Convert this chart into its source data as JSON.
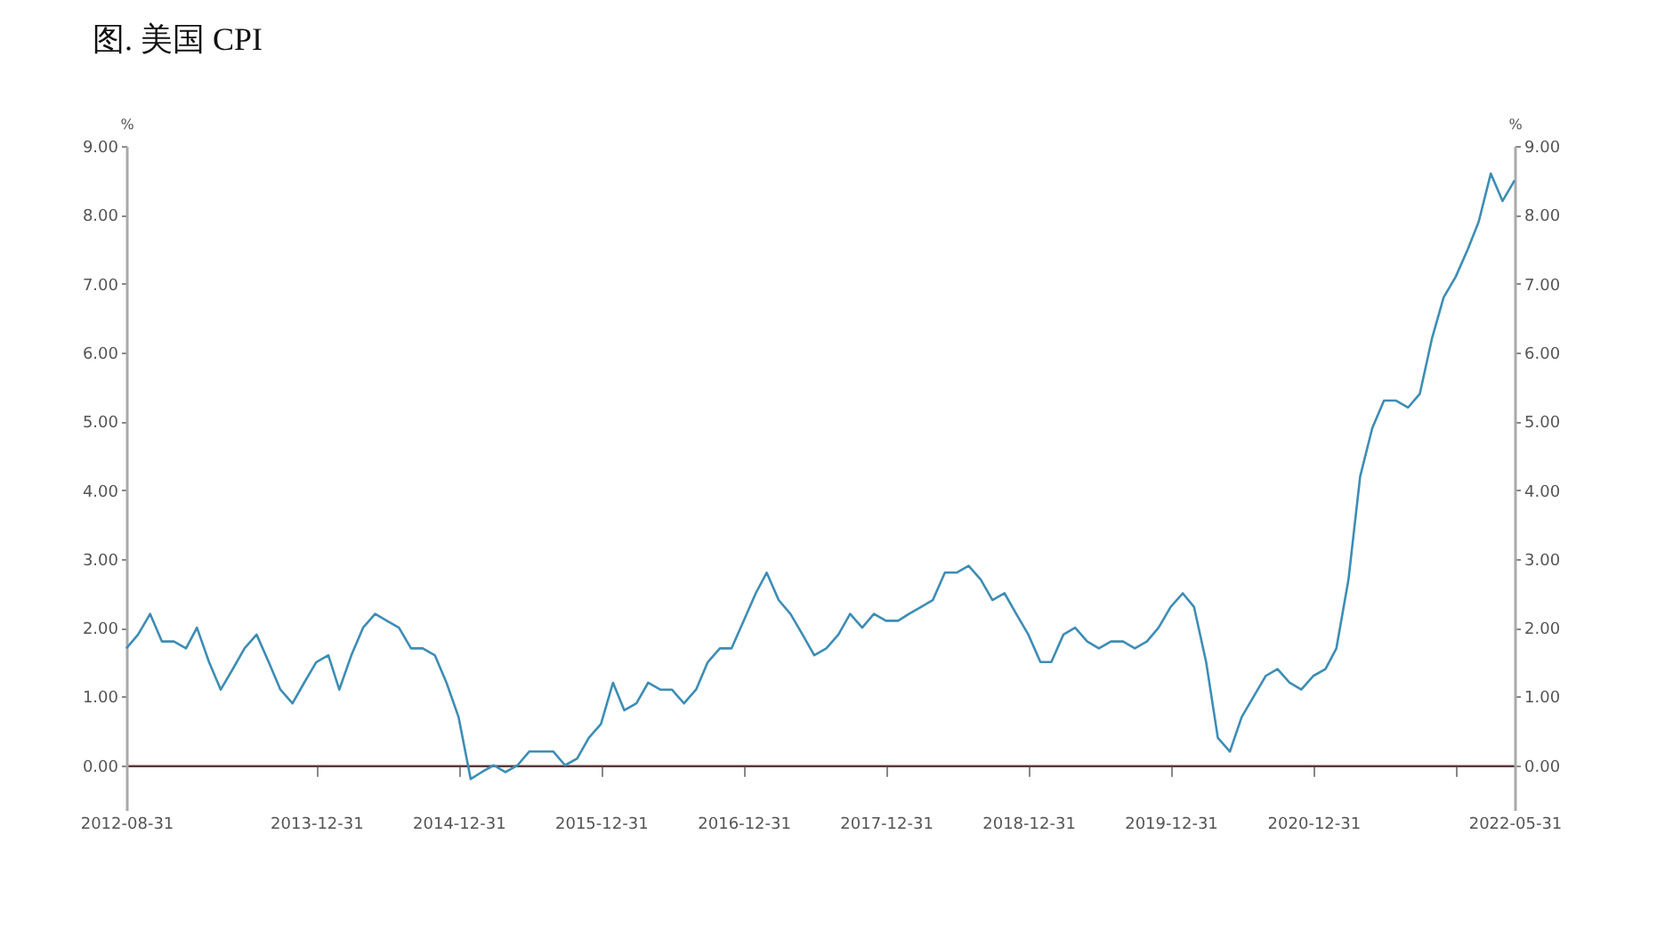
{
  "chart_data": {
    "type": "line",
    "title": "图. 美国 CPI",
    "ylabel": "%",
    "y2label": "%",
    "x": [
      "2012-08-31",
      "2012-09-30",
      "2012-10-31",
      "2012-11-30",
      "2012-12-31",
      "2013-01-31",
      "2013-02-28",
      "2013-03-31",
      "2013-04-30",
      "2013-05-31",
      "2013-06-30",
      "2013-07-31",
      "2013-08-31",
      "2013-09-30",
      "2013-10-31",
      "2013-11-30",
      "2013-12-31",
      "2014-01-31",
      "2014-02-28",
      "2014-03-31",
      "2014-04-30",
      "2014-05-31",
      "2014-06-30",
      "2014-07-31",
      "2014-08-31",
      "2014-09-30",
      "2014-10-31",
      "2014-11-30",
      "2014-12-31",
      "2015-01-31",
      "2015-02-28",
      "2015-03-31",
      "2015-04-30",
      "2015-05-31",
      "2015-06-30",
      "2015-07-31",
      "2015-08-31",
      "2015-09-30",
      "2015-10-31",
      "2015-11-30",
      "2015-12-31",
      "2016-01-31",
      "2016-02-29",
      "2016-03-31",
      "2016-04-30",
      "2016-05-31",
      "2016-06-30",
      "2016-07-31",
      "2016-08-31",
      "2016-09-30",
      "2016-10-31",
      "2016-11-30",
      "2016-12-31",
      "2017-01-31",
      "2017-02-28",
      "2017-03-31",
      "2017-04-30",
      "2017-05-31",
      "2017-06-30",
      "2017-07-31",
      "2017-08-31",
      "2017-09-30",
      "2017-10-31",
      "2017-11-30",
      "2017-12-31",
      "2018-01-31",
      "2018-02-28",
      "2018-03-31",
      "2018-04-30",
      "2018-05-31",
      "2018-06-30",
      "2018-07-31",
      "2018-08-31",
      "2018-09-30",
      "2018-10-31",
      "2018-11-30",
      "2018-12-31",
      "2019-01-31",
      "2019-02-28",
      "2019-03-31",
      "2019-04-30",
      "2019-05-31",
      "2019-06-30",
      "2019-07-31",
      "2019-08-31",
      "2019-09-30",
      "2019-10-31",
      "2019-11-30",
      "2019-12-31",
      "2020-01-31",
      "2020-02-29",
      "2020-03-31",
      "2020-04-30",
      "2020-05-31",
      "2020-06-30",
      "2020-07-31",
      "2020-08-31",
      "2020-09-30",
      "2020-10-31",
      "2020-11-30",
      "2020-12-31",
      "2021-01-31",
      "2021-02-28",
      "2021-03-31",
      "2021-04-30",
      "2021-05-31",
      "2021-06-30",
      "2021-07-31",
      "2021-08-31",
      "2021-09-30",
      "2021-10-31",
      "2021-11-30",
      "2021-12-31",
      "2022-01-31",
      "2022-02-28",
      "2022-03-31",
      "2022-04-30",
      "2022-05-31"
    ],
    "series": [
      {
        "color": "#3d8db5",
        "values": [
          1.7,
          1.9,
          2.2,
          1.8,
          1.8,
          1.7,
          2.0,
          1.5,
          1.1,
          1.4,
          1.7,
          1.9,
          1.5,
          1.1,
          0.9,
          1.2,
          1.5,
          1.6,
          1.1,
          1.6,
          2.0,
          2.2,
          2.1,
          2.0,
          1.7,
          1.7,
          1.6,
          1.2,
          0.7,
          -0.2,
          -0.1,
          0.0,
          -0.1,
          0.0,
          0.2,
          0.2,
          0.2,
          0.0,
          0.1,
          0.4,
          0.6,
          1.2,
          0.8,
          0.9,
          1.2,
          1.1,
          1.1,
          0.9,
          1.1,
          1.5,
          1.7,
          1.7,
          2.1,
          2.5,
          2.8,
          2.4,
          2.2,
          1.9,
          1.6,
          1.7,
          1.9,
          2.2,
          2.0,
          2.2,
          2.1,
          2.1,
          2.2,
          2.3,
          2.4,
          2.8,
          2.8,
          2.9,
          2.7,
          2.4,
          2.5,
          2.2,
          1.9,
          1.5,
          1.5,
          1.9,
          2.0,
          1.8,
          1.7,
          1.8,
          1.8,
          1.7,
          1.8,
          2.0,
          2.3,
          2.5,
          2.3,
          1.5,
          0.4,
          0.2,
          0.7,
          1.0,
          1.3,
          1.4,
          1.2,
          1.1,
          1.3,
          1.4,
          1.7,
          2.7,
          4.2,
          4.9,
          5.3,
          5.3,
          5.2,
          5.4,
          6.2,
          6.8,
          7.1,
          7.5,
          7.9,
          8.6,
          8.2,
          8.5
        ]
      }
    ],
    "xlim": [
      "2012-08-31",
      "2022-05-31"
    ],
    "xticks": [
      "2012-08-31",
      "2013-12-31",
      "2014-12-31",
      "2015-12-31",
      "2016-12-31",
      "2017-12-31",
      "2018-12-31",
      "2019-12-31",
      "2020-12-31",
      {
        "value": "2021-12-31",
        "label": null
      },
      "2022-05-31"
    ],
    "ylim": [
      -0.65,
      9
    ],
    "yticks": [
      {
        "value": 0,
        "label": "0.00"
      },
      {
        "value": 1,
        "label": "1.00"
      },
      {
        "value": 2,
        "label": "2.00"
      },
      {
        "value": 3,
        "label": "3.00"
      },
      {
        "value": 4,
        "label": "4.00"
      },
      {
        "value": 5,
        "label": "5.00"
      },
      {
        "value": 6,
        "label": "6.00"
      },
      {
        "value": 7,
        "label": "7.00"
      },
      {
        "value": 8,
        "label": "8.00"
      },
      {
        "value": 9,
        "label": "9.00"
      }
    ],
    "y2lim": [
      -0.65,
      9
    ],
    "y2ticks": [
      {
        "value": 0,
        "label": "0.00"
      },
      {
        "value": 1,
        "label": "1.00"
      },
      {
        "value": 2,
        "label": "2.00"
      },
      {
        "value": 3,
        "label": "3.00"
      },
      {
        "value": 4,
        "label": "4.00"
      },
      {
        "value": 5,
        "label": "5.00"
      },
      {
        "value": 6,
        "label": "6.00"
      },
      {
        "value": 7,
        "label": "7.00"
      },
      {
        "value": 8,
        "label": "8.00"
      },
      {
        "value": 9,
        "label": "9.00"
      }
    ]
  }
}
